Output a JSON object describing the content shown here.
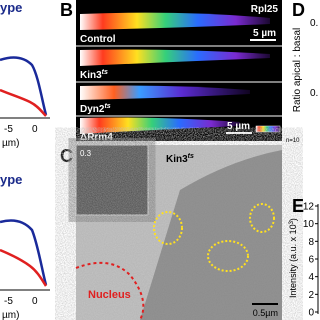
{
  "left_panels": {
    "top_partial_title": "ype",
    "top_ticks": [
      "-5",
      "0"
    ],
    "top_xlabel": "µm)",
    "bottom_partial_title": "ype",
    "bottom_ticks": [
      "-5",
      "0"
    ],
    "bottom_xlabel": "µm)"
  },
  "panel_b": {
    "letter": "B",
    "label": "Rpl25",
    "strips": [
      {
        "label": "Control",
        "scale": "5 µm"
      },
      {
        "label": "Kin3",
        "sup": "ts"
      },
      {
        "label": "Dyn2",
        "sup": "ts"
      },
      {
        "label": "ΔRrm4",
        "scale": "5 µm"
      }
    ]
  },
  "panel_c": {
    "letter": "C",
    "label": "Kin3",
    "sup": "ts",
    "inset": "0.3",
    "nucleus": "Nucleus",
    "scale": "0.5µm"
  },
  "panel_d": {
    "letter": "D",
    "ylabel": "Ratio apical : basal",
    "ticks": [
      "0.",
      "0."
    ],
    "n": "n=10"
  },
  "panel_e": {
    "letter": "E",
    "yticks": [
      "12",
      "10",
      "8",
      "6",
      "4",
      "2",
      "0"
    ],
    "ylabel_main": "Intensity (a.u. x 10",
    "ylabel_sup": "3",
    "ylabel_end": ")"
  }
}
